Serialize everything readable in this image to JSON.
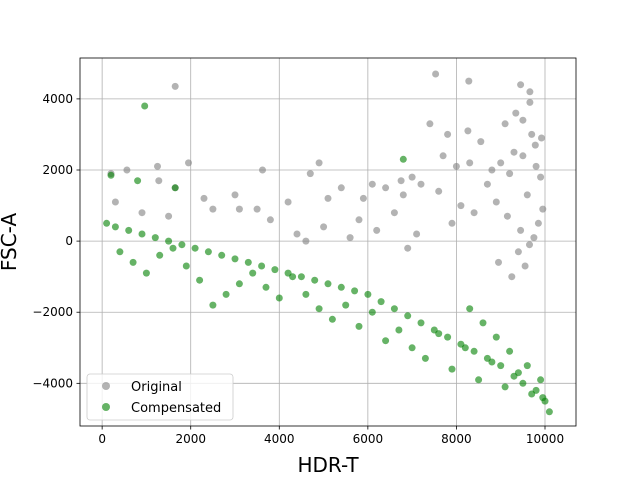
{
  "chart_data": {
    "type": "scatter",
    "title": "",
    "xlabel": "HDR-T",
    "ylabel": "FSC-A",
    "xlim": [
      -500,
      10700
    ],
    "ylim": [
      -5200,
      5150
    ],
    "xticks": [
      0,
      2000,
      4000,
      6000,
      8000,
      10000
    ],
    "yticks": [
      -4000,
      -2000,
      0,
      2000,
      4000
    ],
    "xtick_labels": [
      "0",
      "2000",
      "4000",
      "6000",
      "8000",
      "10000"
    ],
    "ytick_labels": [
      "−4000",
      "−2000",
      "0",
      "2000",
      "4000"
    ],
    "grid": true,
    "legend_position": "lower-left",
    "series": [
      {
        "name": "Original",
        "color": "#808080",
        "opacity": 0.6,
        "x": [
          1650,
          7530,
          8280,
          9450,
          9660,
          9660,
          1950,
          1250,
          7800,
          8550,
          8260,
          9100,
          9700,
          9780,
          9340,
          9500,
          9920,
          560,
          1280,
          3000,
          3620,
          4900,
          4700,
          7000,
          6750,
          200,
          1650,
          2300,
          8000,
          8300,
          7400,
          7700,
          4200,
          3500,
          3100,
          5100,
          5400,
          6100,
          6400,
          300,
          900,
          1500,
          2500,
          3800,
          4400,
          5900,
          6800,
          7200,
          8800,
          9000,
          9300,
          9500,
          9800,
          9900,
          6600,
          7600,
          8100,
          8700,
          9200,
          9600,
          9950,
          9850,
          9750,
          9400,
          6200,
          5800,
          5600,
          5000,
          4600,
          6900,
          7100,
          7900,
          8400,
          8900,
          9150,
          9450,
          9650,
          9550,
          9250,
          8950
        ],
        "y": [
          4350,
          4700,
          4500,
          4400,
          4200,
          3900,
          2200,
          2100,
          3000,
          2800,
          3100,
          3300,
          3000,
          2700,
          3600,
          3400,
          2900,
          2000,
          1700,
          1300,
          2000,
          2200,
          1900,
          1800,
          1700,
          1900,
          1500,
          1200,
          2100,
          2200,
          3300,
          2400,
          1100,
          900,
          900,
          1200,
          1500,
          1600,
          1500,
          1100,
          800,
          700,
          900,
          600,
          200,
          1200,
          1300,
          1600,
          2000,
          2200,
          2500,
          2400,
          2100,
          1800,
          800,
          1400,
          1000,
          1600,
          1900,
          1300,
          900,
          500,
          100,
          -300,
          300,
          600,
          100,
          400,
          0,
          -200,
          200,
          500,
          800,
          1100,
          700,
          300,
          -100,
          -700,
          -1000,
          -600
        ]
      },
      {
        "name": "Compensated",
        "color": "#008000",
        "opacity": 0.6,
        "x": [
          960,
          1650,
          200,
          800,
          6800,
          10100,
          9950,
          9800,
          9500,
          9300,
          9000,
          8700,
          8400,
          8100,
          7800,
          7500,
          7200,
          6900,
          6600,
          6300,
          6000,
          5700,
          5400,
          5100,
          4800,
          4500,
          4200,
          3900,
          3600,
          3300,
          3000,
          2700,
          2400,
          2100,
          1800,
          1500,
          1200,
          900,
          600,
          300,
          100,
          400,
          700,
          1000,
          1300,
          1600,
          1900,
          2200,
          2500,
          2800,
          3100,
          3400,
          3700,
          4000,
          4300,
          4600,
          4900,
          5200,
          5500,
          5800,
          6100,
          6400,
          6700,
          7000,
          7300,
          7600,
          7900,
          8200,
          8500,
          8800,
          9100,
          9400,
          9700,
          10000,
          9900,
          9600,
          9200,
          8900,
          8600,
          8300
        ],
        "y": [
          3800,
          1500,
          1850,
          1700,
          2300,
          -4800,
          -4400,
          -4200,
          -4000,
          -3800,
          -3500,
          -3300,
          -3100,
          -2900,
          -2700,
          -2500,
          -2300,
          -2100,
          -1900,
          -1700,
          -1500,
          -1400,
          -1300,
          -1200,
          -1100,
          -1000,
          -900,
          -800,
          -700,
          -600,
          -500,
          -400,
          -300,
          -200,
          -100,
          0,
          100,
          200,
          300,
          400,
          500,
          -300,
          -600,
          -900,
          -400,
          -200,
          -700,
          -1100,
          -1800,
          -1500,
          -1200,
          -900,
          -1300,
          -1600,
          -1000,
          -1500,
          -1900,
          -2200,
          -1800,
          -2400,
          -2000,
          -2800,
          -2500,
          -3000,
          -3300,
          -2600,
          -3600,
          -3000,
          -3900,
          -3400,
          -4100,
          -3700,
          -4300,
          -4500,
          -3900,
          -3500,
          -3100,
          -2700,
          -2300,
          -1900
        ]
      }
    ]
  }
}
